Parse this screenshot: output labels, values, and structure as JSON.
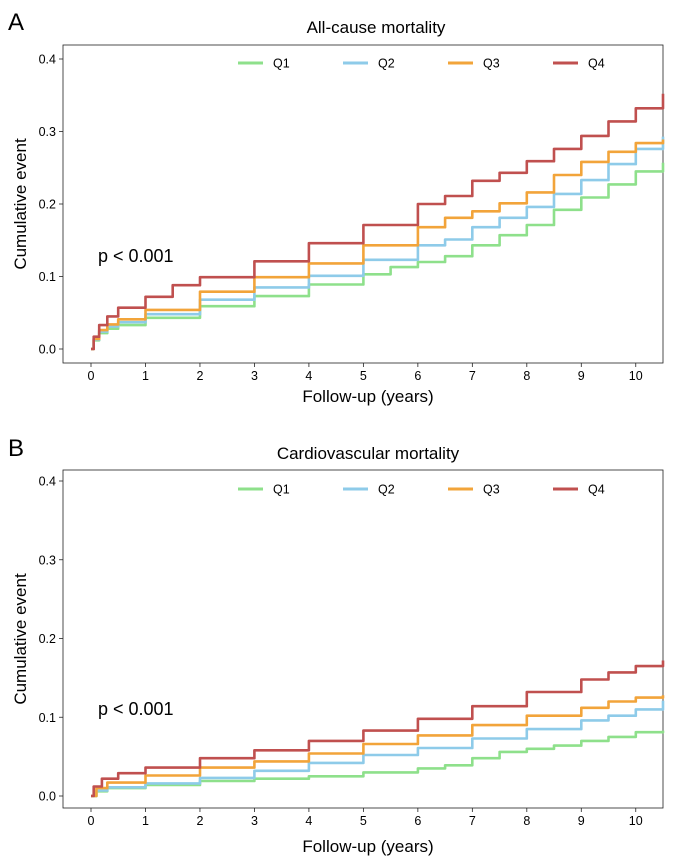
{
  "chart_data": [
    {
      "panel": "A",
      "type": "line",
      "title": "All-cause mortality",
      "xlabel": "Follow-up (years)",
      "ylabel": "Cumulative event",
      "xlim": [
        0,
        10.5
      ],
      "ylim": [
        0,
        0.42
      ],
      "x_ticks": [
        0,
        1,
        2,
        3,
        4,
        5,
        6,
        7,
        8,
        9,
        10
      ],
      "y_ticks": [
        0.0,
        0.1,
        0.2,
        0.3,
        0.4
      ],
      "y_tick_labels": [
        "0.0",
        "0.1",
        "0.2",
        "0.3",
        "0.4"
      ],
      "annotation": "p < 0.001",
      "legend_position": "top-center",
      "series": [
        {
          "name": "Q1",
          "color": "#8ee08b",
          "x": [
            0,
            0.05,
            0.15,
            0.3,
            0.5,
            1,
            2,
            3,
            4,
            5,
            5.5,
            6,
            6.5,
            7,
            7.5,
            8,
            8.5,
            9,
            9.5,
            10,
            10.5
          ],
          "y": [
            0,
            0.012,
            0.022,
            0.028,
            0.033,
            0.043,
            0.059,
            0.073,
            0.089,
            0.103,
            0.113,
            0.12,
            0.128,
            0.143,
            0.157,
            0.171,
            0.192,
            0.209,
            0.227,
            0.245,
            0.257
          ]
        },
        {
          "name": "Q2",
          "color": "#8ecbe9",
          "x": [
            0,
            0.05,
            0.15,
            0.3,
            0.5,
            1,
            2,
            3,
            4,
            5,
            6,
            6.5,
            7,
            7.5,
            8,
            8.5,
            9,
            9.5,
            10,
            10.5
          ],
          "y": [
            0,
            0.013,
            0.024,
            0.031,
            0.037,
            0.048,
            0.068,
            0.085,
            0.101,
            0.123,
            0.143,
            0.151,
            0.168,
            0.181,
            0.196,
            0.214,
            0.233,
            0.255,
            0.276,
            0.293
          ]
        },
        {
          "name": "Q3",
          "color": "#f2a43a",
          "x": [
            0,
            0.05,
            0.15,
            0.3,
            0.5,
            1,
            2,
            3,
            4,
            5,
            6,
            6.5,
            7,
            7.5,
            8,
            8.5,
            9,
            9.5,
            10,
            10.5
          ],
          "y": [
            0,
            0.014,
            0.026,
            0.034,
            0.041,
            0.054,
            0.079,
            0.099,
            0.118,
            0.143,
            0.168,
            0.181,
            0.19,
            0.201,
            0.216,
            0.24,
            0.258,
            0.272,
            0.284,
            0.289
          ]
        },
        {
          "name": "Q4",
          "color": "#c0504f",
          "x": [
            0,
            0.05,
            0.15,
            0.3,
            0.5,
            1,
            1.5,
            2,
            3,
            4,
            5,
            6,
            6.5,
            7,
            7.5,
            8,
            8.5,
            9,
            9.5,
            10,
            10.5
          ],
          "y": [
            0,
            0.017,
            0.033,
            0.045,
            0.057,
            0.072,
            0.088,
            0.099,
            0.121,
            0.146,
            0.171,
            0.2,
            0.211,
            0.232,
            0.243,
            0.259,
            0.276,
            0.294,
            0.314,
            0.332,
            0.352
          ]
        }
      ]
    },
    {
      "panel": "B",
      "type": "line",
      "title": "Cardiovascular mortality",
      "xlabel": "Follow-up (years)",
      "ylabel": "Cumulative event",
      "xlim": [
        0,
        10.5
      ],
      "ylim": [
        0,
        0.42
      ],
      "x_ticks": [
        0,
        1,
        2,
        3,
        4,
        5,
        6,
        7,
        8,
        9,
        10
      ],
      "y_ticks": [
        0.0,
        0.1,
        0.2,
        0.3,
        0.4
      ],
      "y_tick_labels": [
        "0.0",
        "0.1",
        "0.2",
        "0.3",
        "0.4"
      ],
      "annotation": "p < 0.001",
      "legend_position": "top-center",
      "series": [
        {
          "name": "Q1",
          "color": "#8ee08b",
          "x": [
            0,
            0.1,
            0.3,
            1,
            2,
            3,
            4,
            5,
            6,
            6.5,
            7,
            7.5,
            8,
            8.5,
            9,
            9.5,
            10,
            10.5
          ],
          "y": [
            0,
            0.006,
            0.01,
            0.014,
            0.019,
            0.022,
            0.025,
            0.03,
            0.035,
            0.039,
            0.048,
            0.056,
            0.06,
            0.064,
            0.07,
            0.075,
            0.081,
            0.083
          ]
        },
        {
          "name": "Q2",
          "color": "#8ecbe9",
          "x": [
            0,
            0.1,
            0.3,
            1,
            2,
            3,
            4,
            5,
            6,
            7,
            8,
            9,
            9.5,
            10,
            10.5
          ],
          "y": [
            0,
            0.007,
            0.011,
            0.016,
            0.023,
            0.032,
            0.042,
            0.052,
            0.061,
            0.073,
            0.085,
            0.096,
            0.102,
            0.11,
            0.121
          ]
        },
        {
          "name": "Q3",
          "color": "#f2a43a",
          "x": [
            0,
            0.1,
            0.3,
            1,
            2,
            3,
            4,
            5,
            6,
            7,
            8,
            9,
            9.5,
            10,
            10.5
          ],
          "y": [
            0,
            0.01,
            0.017,
            0.026,
            0.036,
            0.044,
            0.054,
            0.066,
            0.077,
            0.09,
            0.102,
            0.112,
            0.12,
            0.125,
            0.128
          ]
        },
        {
          "name": "Q4",
          "color": "#c0504f",
          "x": [
            0,
            0.05,
            0.2,
            0.5,
            1,
            2,
            3,
            4,
            5,
            6,
            7,
            8,
            9,
            9.5,
            10,
            10.5
          ],
          "y": [
            0,
            0.012,
            0.022,
            0.029,
            0.036,
            0.048,
            0.058,
            0.07,
            0.083,
            0.098,
            0.114,
            0.132,
            0.148,
            0.157,
            0.165,
            0.172
          ]
        }
      ]
    }
  ]
}
